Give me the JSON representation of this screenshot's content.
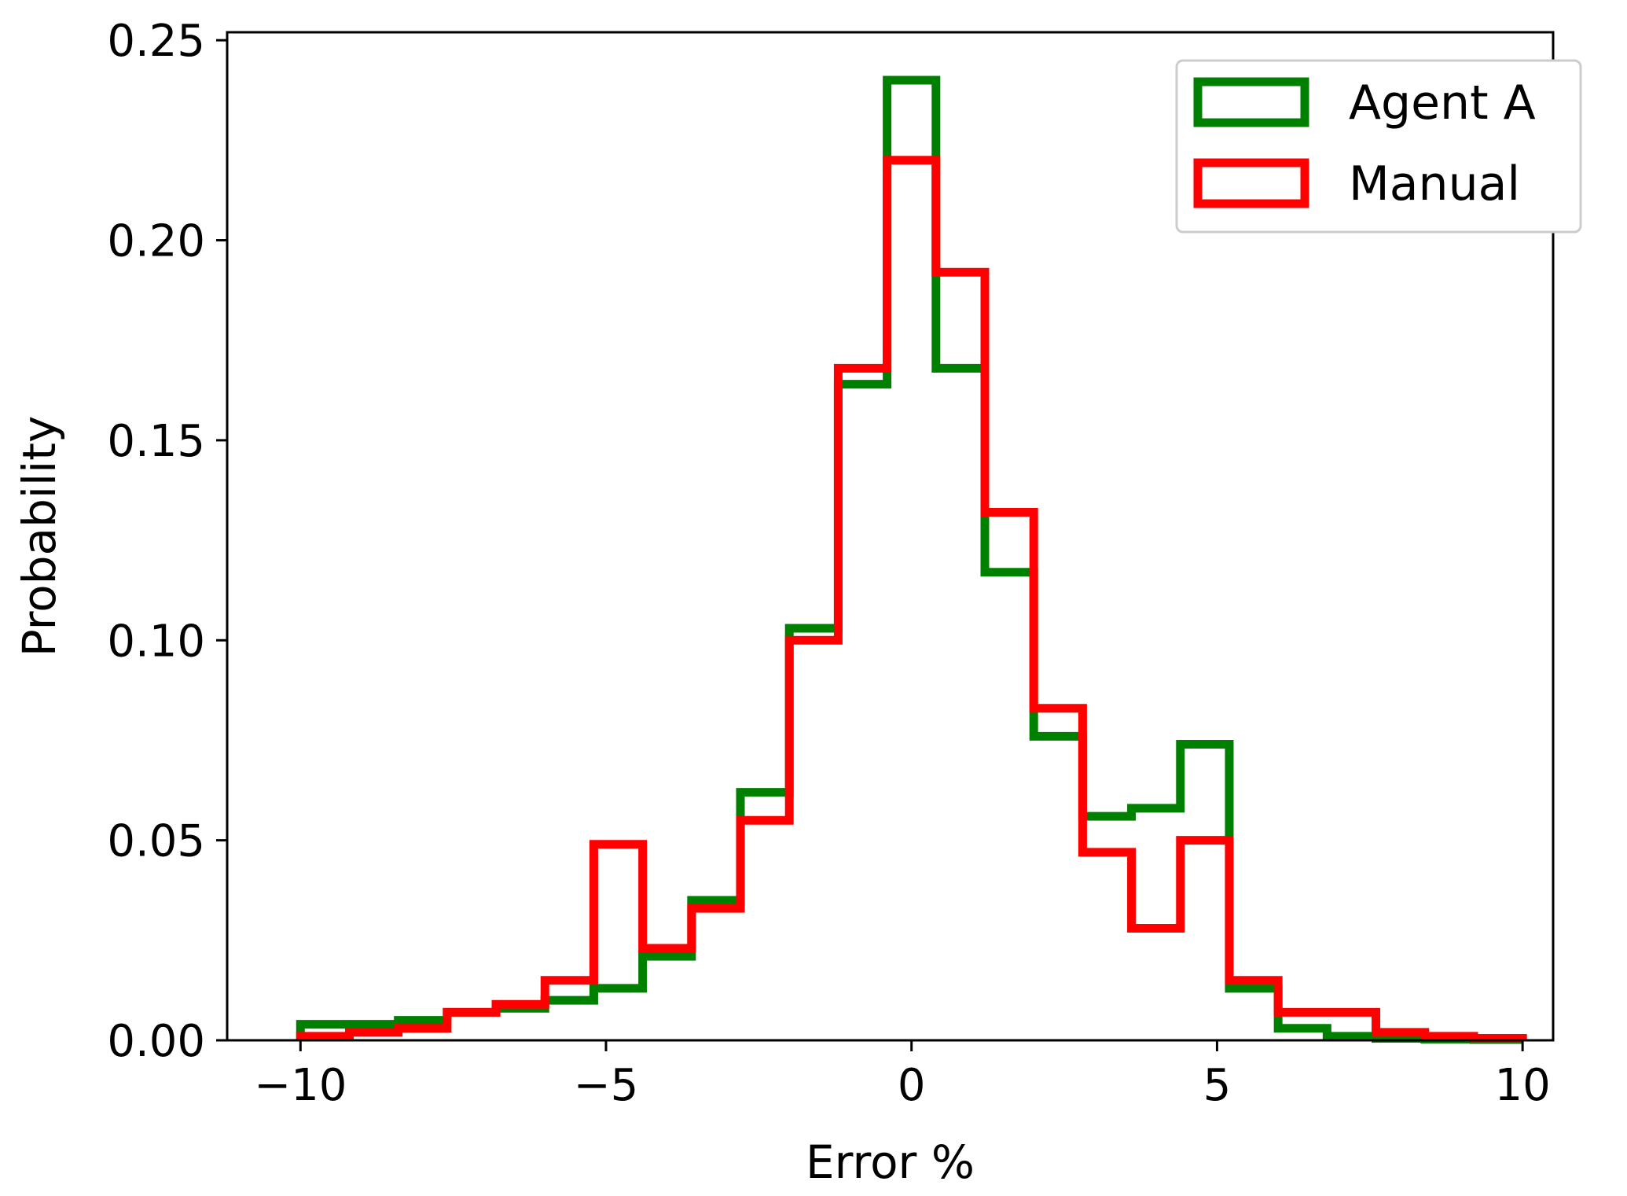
{
  "chart_data": {
    "type": "histogram",
    "xlabel": "Error %",
    "ylabel": "Probability",
    "xlim": [
      -11.2,
      10.5
    ],
    "ylim": [
      0,
      0.252
    ],
    "xticks": [
      -10,
      -5,
      0,
      5,
      10
    ],
    "xtick_labels": [
      "−10",
      "−5",
      "0",
      "5",
      "10"
    ],
    "yticks": [
      0,
      0.05,
      0.1,
      0.15,
      0.2,
      0.25
    ],
    "ytick_labels": [
      "0.00",
      "0.05",
      "0.10",
      "0.15",
      "0.20",
      "0.25"
    ],
    "bin_edges": [
      -10.0,
      -9.2,
      -8.4,
      -7.6,
      -6.8,
      -6.0,
      -5.2,
      -4.4,
      -3.6,
      -2.8,
      -2.0,
      -1.2,
      -0.4,
      0.4,
      1.2,
      2.0,
      2.8,
      3.6,
      4.4,
      5.2,
      6.0,
      6.8,
      7.6,
      8.4,
      9.2,
      10.0
    ],
    "series": [
      {
        "name": "Agent A",
        "color": "#008000",
        "values": [
          0.004,
          0.004,
          0.005,
          0.007,
          0.008,
          0.01,
          0.013,
          0.021,
          0.035,
          0.062,
          0.103,
          0.164,
          0.24,
          0.168,
          0.117,
          0.076,
          0.056,
          0.058,
          0.074,
          0.013,
          0.003,
          0.001,
          0.0005,
          0.0003,
          0.0002
        ]
      },
      {
        "name": "Manual",
        "color": "#ff0000",
        "values": [
          0.001,
          0.002,
          0.003,
          0.007,
          0.009,
          0.015,
          0.049,
          0.023,
          0.033,
          0.055,
          0.1,
          0.168,
          0.22,
          0.192,
          0.132,
          0.083,
          0.047,
          0.028,
          0.05,
          0.015,
          0.007,
          0.007,
          0.002,
          0.001,
          0.0005
        ]
      }
    ],
    "legend_position": "top-right",
    "grid": false
  }
}
